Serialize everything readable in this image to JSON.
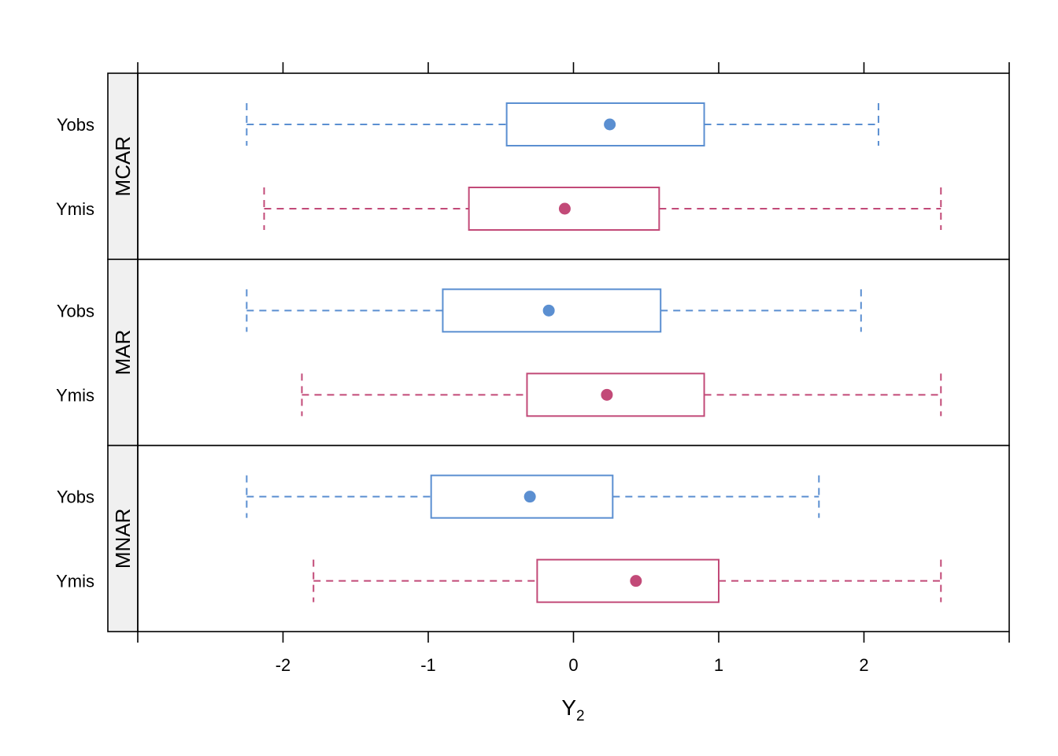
{
  "chart_data": {
    "type": "boxplot",
    "orientation": "horizontal",
    "xlabel": "Y",
    "xlabel_subscript": "2",
    "xlim": [
      -3,
      3
    ],
    "xticks": [
      {
        "value": -2,
        "label": "-2"
      },
      {
        "value": -1,
        "label": "-1"
      },
      {
        "value": 0,
        "label": "0"
      },
      {
        "value": 1,
        "label": "1"
      },
      {
        "value": 2,
        "label": "2"
      }
    ],
    "categories": [
      "Yobs",
      "Ymis"
    ],
    "series_colors": {
      "Yobs": "#5b8fd1",
      "Ymis": "#c24a78"
    },
    "strip_color": "#f0f0f0",
    "panels": [
      {
        "name": "MCAR",
        "boxes": [
          {
            "category": "Yobs",
            "whisker_low": -2.25,
            "q1": -0.46,
            "median": 0.25,
            "q3": 0.9,
            "whisker_high": 2.1
          },
          {
            "category": "Ymis",
            "whisker_low": -2.13,
            "q1": -0.72,
            "median": -0.06,
            "q3": 0.59,
            "whisker_high": 2.53
          }
        ]
      },
      {
        "name": "MAR",
        "boxes": [
          {
            "category": "Yobs",
            "whisker_low": -2.25,
            "q1": -0.9,
            "median": -0.17,
            "q3": 0.6,
            "whisker_high": 1.98
          },
          {
            "category": "Ymis",
            "whisker_low": -1.87,
            "q1": -0.32,
            "median": 0.23,
            "q3": 0.9,
            "whisker_high": 2.53
          }
        ]
      },
      {
        "name": "MNAR",
        "boxes": [
          {
            "category": "Yobs",
            "whisker_low": -2.25,
            "q1": -0.98,
            "median": -0.3,
            "q3": 0.27,
            "whisker_high": 1.69
          },
          {
            "category": "Ymis",
            "whisker_low": -1.79,
            "q1": -0.25,
            "median": 0.43,
            "q3": 1.0,
            "whisker_high": 2.53
          }
        ]
      }
    ]
  }
}
